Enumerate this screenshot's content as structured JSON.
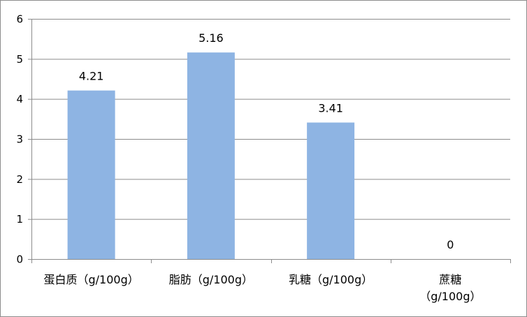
{
  "chart_data": {
    "type": "bar",
    "title": "",
    "xlabel": "",
    "ylabel": "",
    "categories": [
      [
        "蛋白质（g/100g）"
      ],
      [
        "脂肪（g/100g）"
      ],
      [
        "乳糖（g/100g）"
      ],
      [
        "蔗糖",
        "（g/100g）"
      ]
    ],
    "values": [
      4.21,
      5.16,
      3.41,
      0
    ],
    "data_labels": [
      "4.21",
      "5.16",
      "3.41",
      "0"
    ],
    "ylim": [
      0,
      6
    ],
    "yticks": [
      0,
      1,
      2,
      3,
      4,
      5,
      6
    ],
    "grid": true,
    "legend": "none",
    "colors": {
      "bar": "#8eb4e3",
      "grid": "#8c8c8c",
      "axis": "#8c8c8c"
    }
  }
}
